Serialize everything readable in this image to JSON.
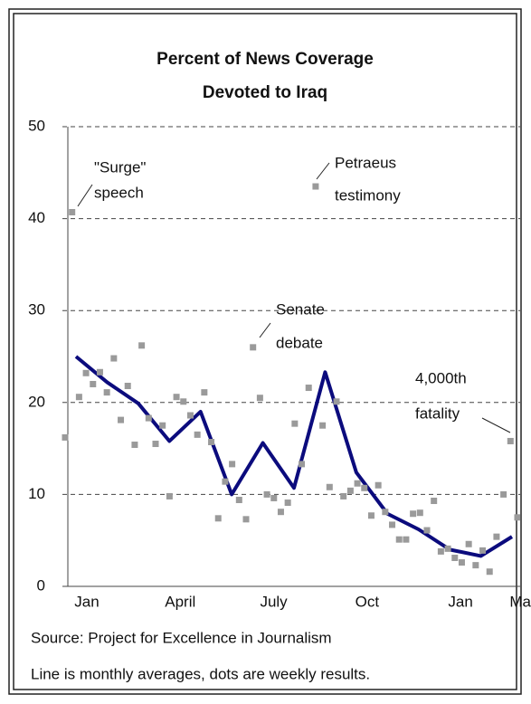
{
  "chart_data": {
    "type": "line",
    "title": [
      "Percent of News Coverage",
      "Devoted to Iraq"
    ],
    "categories": [
      "Jan",
      null,
      null,
      "April",
      null,
      null,
      "July",
      null,
      null,
      "Oct",
      null,
      null,
      "Jan",
      null,
      "Mar"
    ],
    "ylim": [
      0,
      50
    ],
    "yticks": [
      0,
      10,
      20,
      30,
      40,
      50
    ],
    "grid": true,
    "series": [
      {
        "type": "line",
        "color": "#0b0b7d",
        "values": [
          25.0,
          22.2,
          19.9,
          15.8,
          19.0,
          10.0,
          15.6,
          10.7,
          23.3,
          12.4,
          7.9,
          6.2,
          4.0,
          3.3,
          5.4
        ]
      },
      {
        "type": "scatter",
        "color": "#9a9a9a",
        "xlim": [
          0,
          65
        ],
        "x": [
          0,
          1,
          2,
          3,
          4,
          5,
          6,
          7,
          8,
          9,
          10,
          11,
          12,
          13,
          14,
          15,
          16,
          17,
          18,
          19,
          20,
          21,
          22,
          23,
          24,
          25,
          26,
          27,
          28,
          29,
          30,
          31,
          32,
          33,
          34,
          35,
          36,
          37,
          38,
          39,
          40,
          41,
          42,
          43,
          44,
          45,
          46,
          47,
          48,
          49,
          50,
          51,
          52,
          53,
          54,
          55,
          56,
          57,
          58,
          59,
          60,
          61,
          62,
          63,
          64,
          65
        ],
        "values": [
          16.2,
          40.7,
          20.6,
          23.2,
          22.0,
          23.3,
          21.1,
          24.8,
          18.1,
          21.8,
          15.4,
          26.2,
          18.3,
          15.5,
          17.5,
          9.8,
          20.6,
          20.1,
          18.6,
          16.5,
          21.1,
          15.7,
          7.4,
          11.4,
          13.3,
          9.4,
          7.3,
          26.0,
          20.5,
          10.0,
          9.6,
          8.1,
          9.1,
          17.7,
          13.3,
          21.6,
          43.5,
          17.5,
          10.8,
          20.1,
          9.8,
          10.4,
          11.2,
          10.7,
          7.7,
          11.0,
          8.1,
          6.7,
          5.1,
          5.1,
          7.9,
          8.0,
          6.1,
          9.3,
          3.8,
          4.1,
          3.1,
          2.6,
          4.6,
          2.3,
          3.9,
          1.6,
          5.4,
          10.0,
          15.8,
          7.5
        ]
      }
    ],
    "annotations": [
      {
        "text": [
          "\"Surge\"",
          "speech"
        ]
      },
      {
        "text": [
          "Petraeus",
          "testimony"
        ]
      },
      {
        "text": [
          "Senate",
          "debate"
        ]
      },
      {
        "text": [
          "4,000th",
          "fatality"
        ]
      }
    ],
    "source": "Source: Project for Excellence in Journalism",
    "note": "Line is monthly averages, dots are weekly results."
  }
}
